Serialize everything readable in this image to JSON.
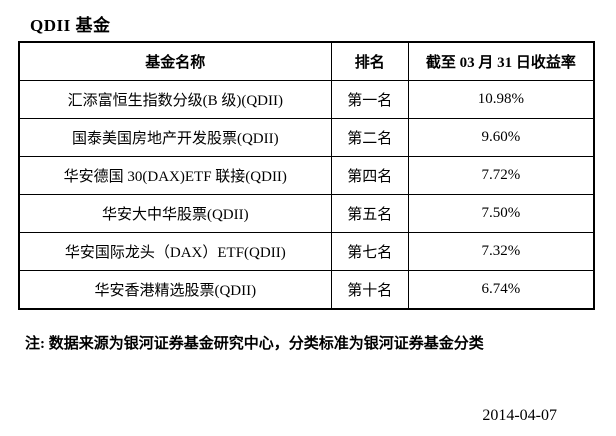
{
  "page": {
    "title": "QDII 基金",
    "note": "注: 数据来源为银河证券基金研究中心，分类标准为银河证券基金分类",
    "date": "2014-04-07"
  },
  "table": {
    "headers": [
      "基金名称",
      "排名",
      "截至 03 月 31 日收益率"
    ],
    "rows": [
      {
        "name": "汇添富恒生指数分级(B 级)(QDII)",
        "rank": "第一名",
        "return": "10.98%"
      },
      {
        "name": "国泰美国房地产开发股票(QDII)",
        "rank": "第二名",
        "return": "9.60%"
      },
      {
        "name": "华安德国 30(DAX)ETF 联接(QDII)",
        "rank": "第四名",
        "return": "7.72%"
      },
      {
        "name": "华安大中华股票(QDII)",
        "rank": "第五名",
        "return": "7.50%"
      },
      {
        "name": "华安国际龙头（DAX）ETF(QDII)",
        "rank": "第七名",
        "return": "7.32%"
      },
      {
        "name": "华安香港精选股票(QDII)",
        "rank": "第十名",
        "return": "6.74%"
      }
    ]
  },
  "colors": {
    "background": "#ffffff",
    "text": "#000000",
    "border": "#000000"
  }
}
